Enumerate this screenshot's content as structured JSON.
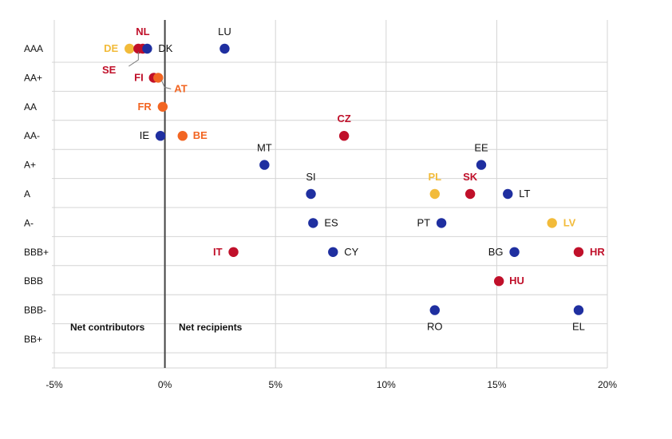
{
  "chart_data": {
    "type": "scatter",
    "title": "",
    "xlabel": "",
    "ylabel": "",
    "xlim": [
      -5,
      20
    ],
    "x_ticks": [
      -5,
      0,
      5,
      10,
      15,
      20
    ],
    "x_tick_labels": [
      "-5%",
      "0%",
      "5%",
      "10%",
      "15%",
      "20%"
    ],
    "y_categories": [
      "AAA",
      "AA+",
      "AA",
      "AA-",
      "A+",
      "A",
      "A-",
      "BBB+",
      "BBB",
      "BBB-",
      "BB+"
    ],
    "colors": {
      "blue": "#1f2fa0",
      "red": "#c0102a",
      "orange": "#f26522",
      "yellow": "#f2bb3a"
    },
    "annotations": {
      "left": "Net contributors",
      "right": "Net recipients"
    },
    "points": [
      {
        "country": "NL",
        "x": -1.0,
        "rating": "AAA",
        "color": "red"
      },
      {
        "country": "DE",
        "x": -1.6,
        "rating": "AAA",
        "color": "yellow"
      },
      {
        "country": "SE",
        "x": -1.2,
        "rating": "AAA",
        "color": "red"
      },
      {
        "country": "DK",
        "x": -0.8,
        "rating": "AAA",
        "color": "blue"
      },
      {
        "country": "LU",
        "x": 2.7,
        "rating": "AAA",
        "color": "blue"
      },
      {
        "country": "FI",
        "x": -0.5,
        "rating": "AA+",
        "color": "red"
      },
      {
        "country": "AT",
        "x": -0.3,
        "rating": "AA+",
        "color": "orange"
      },
      {
        "country": "FR",
        "x": -0.1,
        "rating": "AA",
        "color": "orange"
      },
      {
        "country": "IE",
        "x": -0.2,
        "rating": "AA-",
        "color": "blue"
      },
      {
        "country": "BE",
        "x": 0.8,
        "rating": "AA-",
        "color": "orange"
      },
      {
        "country": "CZ",
        "x": 8.1,
        "rating": "AA-",
        "color": "red"
      },
      {
        "country": "MT",
        "x": 4.5,
        "rating": "A+",
        "color": "blue"
      },
      {
        "country": "EE",
        "x": 14.3,
        "rating": "A+",
        "color": "blue"
      },
      {
        "country": "SI",
        "x": 6.6,
        "rating": "A",
        "color": "blue"
      },
      {
        "country": "PL",
        "x": 12.2,
        "rating": "A",
        "color": "yellow"
      },
      {
        "country": "SK",
        "x": 13.8,
        "rating": "A",
        "color": "red"
      },
      {
        "country": "LT",
        "x": 15.5,
        "rating": "A",
        "color": "blue"
      },
      {
        "country": "ES",
        "x": 6.7,
        "rating": "A-",
        "color": "blue"
      },
      {
        "country": "PT",
        "x": 12.5,
        "rating": "A-",
        "color": "blue"
      },
      {
        "country": "LV",
        "x": 17.5,
        "rating": "A-",
        "color": "yellow"
      },
      {
        "country": "IT",
        "x": 3.1,
        "rating": "BBB+",
        "color": "red"
      },
      {
        "country": "CY",
        "x": 7.6,
        "rating": "BBB+",
        "color": "blue"
      },
      {
        "country": "BG",
        "x": 15.8,
        "rating": "BBB+",
        "color": "blue"
      },
      {
        "country": "HR",
        "x": 18.7,
        "rating": "BBB+",
        "color": "red"
      },
      {
        "country": "HU",
        "x": 15.1,
        "rating": "BBB",
        "color": "red"
      },
      {
        "country": "RO",
        "x": 12.2,
        "rating": "BBB-",
        "color": "blue"
      },
      {
        "country": "EL",
        "x": 18.7,
        "rating": "BBB-",
        "color": "blue"
      }
    ]
  }
}
